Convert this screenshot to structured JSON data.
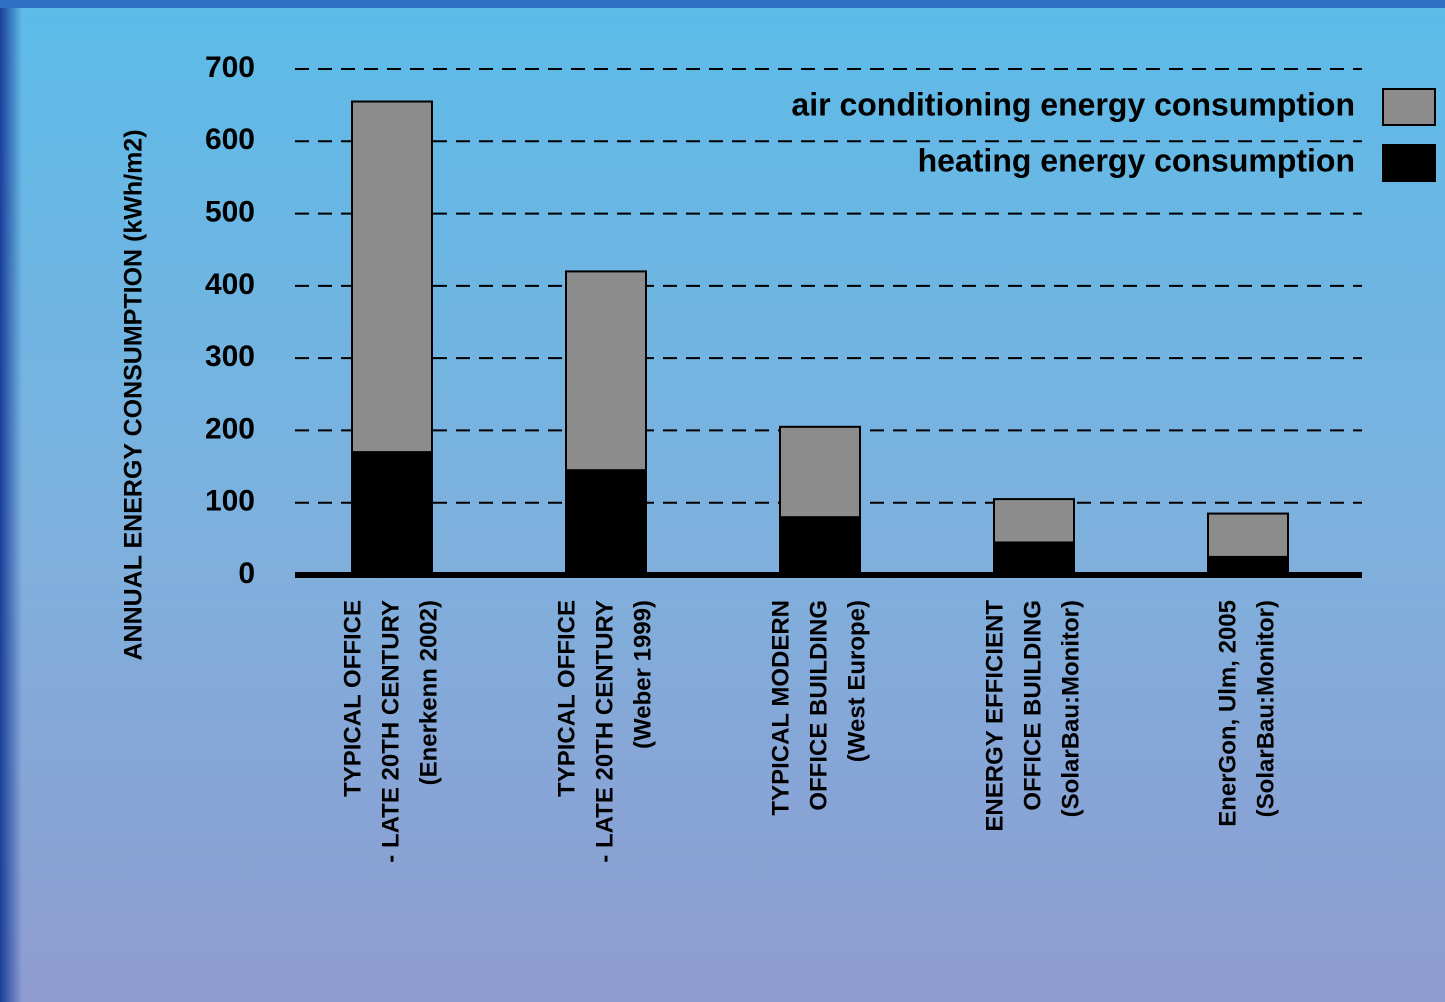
{
  "chart_data": {
    "type": "stacked_bar",
    "y_label": "ANNUAL ENERGY CONSUMPTION (kWh/m2)",
    "categories": [
      [
        "TYPICAL OFFICE",
        "- LATE 20TH CENTURY",
        "(Enerkenn 2002)"
      ],
      [
        "TYPICAL OFFICE",
        "- LATE 20TH CENTURY",
        "(Weber 1999)"
      ],
      [
        "TYPICAL MODERN",
        "OFFICE BUILDING",
        "(West Europe)"
      ],
      [
        "ENERGY EFFICIENT",
        "OFFICE BUILDING",
        "(SolarBau:Monitor)"
      ],
      [
        "EnerGon, Ulm, 2005",
        "(SolarBau:Monitor)"
      ]
    ],
    "series": [
      {
        "name": "heating energy consumption",
        "color": "#000000",
        "values": [
          170,
          145,
          80,
          45,
          25
        ]
      },
      {
        "name": "air conditioning energy consumption",
        "color": "#8c8c8c",
        "values": [
          485,
          275,
          125,
          60,
          60
        ]
      }
    ],
    "ylim": [
      0,
      700
    ],
    "yticks": [
      0,
      100,
      200,
      300,
      400,
      500,
      600,
      700
    ],
    "grid": true,
    "legend": "top-right"
  }
}
